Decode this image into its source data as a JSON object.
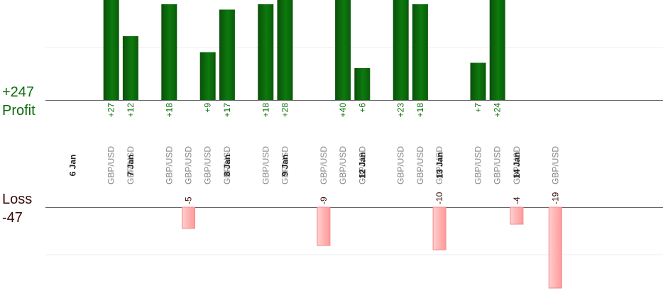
{
  "chart_data": {
    "type": "bar",
    "profit_total": "+247",
    "profit_label": "Profit",
    "loss_label": "Loss",
    "loss_total": "-47",
    "columns": [
      {
        "kind": "date",
        "label": "6 Jan"
      },
      {
        "kind": "trade",
        "label": "GBP/USD",
        "value": 27,
        "text": "+27"
      },
      {
        "kind": "trade",
        "label": "GBP/USD",
        "value": 12,
        "text": "+12"
      },
      {
        "kind": "date",
        "label": "7 Jan"
      },
      {
        "kind": "trade",
        "label": "GBP/USD",
        "value": 18,
        "text": "+18"
      },
      {
        "kind": "trade",
        "label": "GBP/USD",
        "value": -5,
        "text": "-5"
      },
      {
        "kind": "trade",
        "label": "GBP/USD",
        "value": 9,
        "text": "+9"
      },
      {
        "kind": "trade",
        "label": "GBP/USD",
        "value": 17,
        "text": "+17"
      },
      {
        "kind": "date",
        "label": "8 Jan"
      },
      {
        "kind": "trade",
        "label": "GBP/USD",
        "value": 18,
        "text": "+18"
      },
      {
        "kind": "trade",
        "label": "GBP/USD",
        "value": 28,
        "text": "+28"
      },
      {
        "kind": "date",
        "label": "9 Jan"
      },
      {
        "kind": "trade",
        "label": "GBP/USD",
        "value": -9,
        "text": "-9"
      },
      {
        "kind": "trade",
        "label": "GBP/USD",
        "value": 40,
        "text": "+40"
      },
      {
        "kind": "trade",
        "label": "GBP/USD",
        "value": 6,
        "text": "+6"
      },
      {
        "kind": "date",
        "label": "12 Jan"
      },
      {
        "kind": "trade",
        "label": "GBP/USD",
        "value": 23,
        "text": "+23"
      },
      {
        "kind": "trade",
        "label": "GBP/USD",
        "value": 18,
        "text": "+18"
      },
      {
        "kind": "trade",
        "label": "GBP/USD",
        "value": -10,
        "text": "-10"
      },
      {
        "kind": "date",
        "label": "13 Jan"
      },
      {
        "kind": "trade",
        "label": "GBP/USD",
        "value": 7,
        "text": "+7"
      },
      {
        "kind": "trade",
        "label": "GBP/USD",
        "value": 24,
        "text": "+24"
      },
      {
        "kind": "trade",
        "label": "GBP/USD",
        "value": -4,
        "text": "-4"
      },
      {
        "kind": "date",
        "label": "14 Jan"
      },
      {
        "kind": "trade",
        "label": "GBP/USD",
        "value": -19,
        "text": "-19"
      }
    ],
    "colors": {
      "profit": "#0a6b0a",
      "loss": "#ffb0b0",
      "date": "#222222",
      "pair": "#888888"
    },
    "grid": true
  }
}
